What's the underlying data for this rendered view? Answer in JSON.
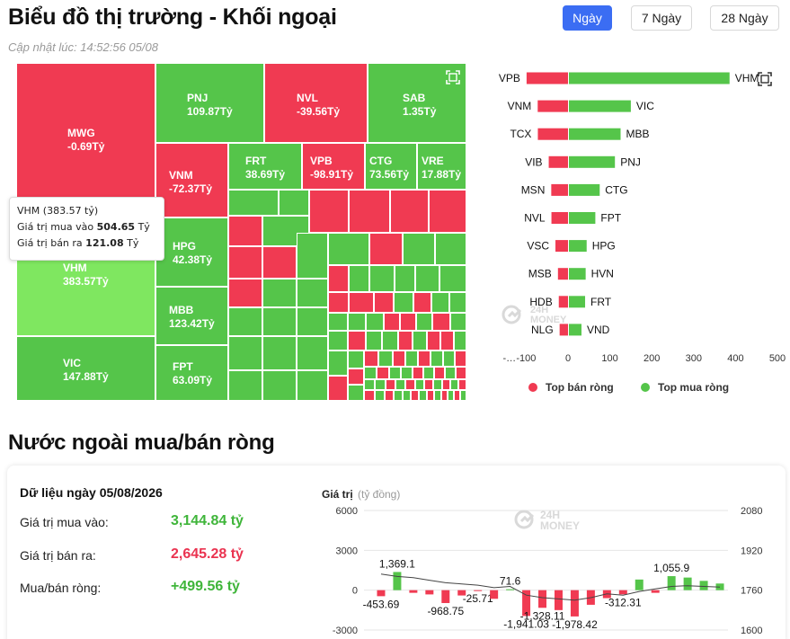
{
  "header": {
    "title": "Biểu đồ thị trường - Khối ngoại",
    "updated": "Cập nhật lúc: 14:52:56 05/08",
    "periods": [
      "Ngày",
      "7 Ngày",
      "28 Ngày"
    ],
    "active_period": "Ngày"
  },
  "treemap": {
    "unit": "Tỷ",
    "colors": {
      "sell": "#f03a52",
      "buy": "#55c54a",
      "highlight": "#7fe760"
    },
    "tiles": [
      {
        "code": "MWG",
        "value": "-0.69"
      },
      {
        "code": "PNJ",
        "value": "109.87"
      },
      {
        "code": "NVL",
        "value": "-39.56"
      },
      {
        "code": "SAB",
        "value": "1.35"
      },
      {
        "code": "VNM",
        "value": "-72.37"
      },
      {
        "code": "FRT",
        "value": "38.69"
      },
      {
        "code": "VPB",
        "value": "-98.91"
      },
      {
        "code": "CTG",
        "value": "73.56"
      },
      {
        "code": "VRE",
        "value": "17.88"
      },
      {
        "code": "VHM",
        "value": "383.57"
      },
      {
        "code": "HPG",
        "value": "42.38"
      },
      {
        "code": "MBB",
        "value": "123.42"
      },
      {
        "code": "VIC",
        "value": "147.88"
      },
      {
        "code": "FPT",
        "value": "63.09"
      }
    ]
  },
  "tooltip": {
    "title": "VHM (383.57 tỷ)",
    "buy_label": "Giá trị mua vào",
    "buy_value": "504.65",
    "sell_label": "Giá trị bán ra",
    "sell_value": "121.08",
    "unit": "Tỷ"
  },
  "watermark": {
    "line1": "24H",
    "line2": "MONEY"
  },
  "top_chart": {
    "type": "bar",
    "pairs": [
      {
        "sell": "VPB",
        "sell_value": -98.91,
        "buy": "VHM",
        "buy_value": 383.57
      },
      {
        "sell": "VNM",
        "sell_value": -72.37,
        "buy": "VIC",
        "buy_value": 147.88
      },
      {
        "sell": "TCX",
        "sell_value": -72,
        "buy": "MBB",
        "buy_value": 123.42
      },
      {
        "sell": "VIB",
        "sell_value": -46,
        "buy": "PNJ",
        "buy_value": 109.87
      },
      {
        "sell": "MSN",
        "sell_value": -40,
        "buy": "CTG",
        "buy_value": 73.56
      },
      {
        "sell": "NVL",
        "sell_value": -39.56,
        "buy": "FPT",
        "buy_value": 63.09
      },
      {
        "sell": "VSC",
        "sell_value": -30,
        "buy": "HPG",
        "buy_value": 42.38
      },
      {
        "sell": "MSB",
        "sell_value": -24,
        "buy": "HVN",
        "buy_value": 40
      },
      {
        "sell": "HDB",
        "sell_value": -22,
        "buy": "FRT",
        "buy_value": 38.69
      },
      {
        "sell": "NLG",
        "sell_value": -20,
        "buy": "VND",
        "buy_value": 30
      }
    ],
    "ticks": [
      "-…",
      "-100",
      "0",
      "100",
      "200",
      "300",
      "400",
      "500"
    ],
    "xlim": [
      -200,
      500
    ],
    "legend": [
      {
        "label": "Top bán ròng",
        "color": "#f03a52"
      },
      {
        "label": "Top mua ròng",
        "color": "#55c54a"
      }
    ]
  },
  "net_section": {
    "title": "Nước ngoài mua/bán ròng",
    "date_label": "Dữ liệu ngày 05/08/2026",
    "stats": [
      {
        "label": "Giá trị mua vào:",
        "value": "3,144.84 tỷ",
        "tone": "green"
      },
      {
        "label": "Giá trị bán ra:",
        "value": "2,645.28 tỷ",
        "tone": "red"
      },
      {
        "label": "Mua/bán ròng:",
        "value": "+499.56 tỷ",
        "tone": "green"
      }
    ]
  },
  "chart_data": {
    "type": "bar",
    "ylabel": "Giá trị",
    "yunit": "(tỷ đồng)",
    "left_ticks": [
      6000,
      3000,
      0,
      -3000
    ],
    "right_ticks": [
      2080,
      1920,
      1760,
      1600
    ],
    "ylim": [
      -3000,
      6000
    ],
    "y2lim": [
      1600,
      2080
    ],
    "values": [
      -453.69,
      1369.1,
      -200,
      -320,
      -968.75,
      -400,
      -25.71,
      -650,
      71.6,
      -1941.03,
      -1328.11,
      -1500,
      -1978.42,
      -1100,
      -600,
      -312.31,
      800,
      -200,
      1055.9,
      950,
      700,
      500
    ],
    "labels": [
      "-453.69",
      "1,369.1",
      "",
      "",
      "-968.75",
      "",
      "-25.71",
      "",
      "71.6",
      "-1,941.03",
      "-1,328.11",
      "",
      "-1,978.42",
      "",
      "",
      "-312.31",
      "",
      "",
      "1,055.9",
      "",
      "",
      ""
    ],
    "line": [
      1825,
      1815,
      1810,
      1800,
      1790,
      1785,
      1780,
      1770,
      1775,
      1740,
      1730,
      1725,
      1720,
      1730,
      1745,
      1740,
      1755,
      1765,
      1775,
      1778,
      1775,
      1772
    ],
    "colors": {
      "up": "#55c54a",
      "down": "#f03a52",
      "line": "#444444"
    }
  }
}
